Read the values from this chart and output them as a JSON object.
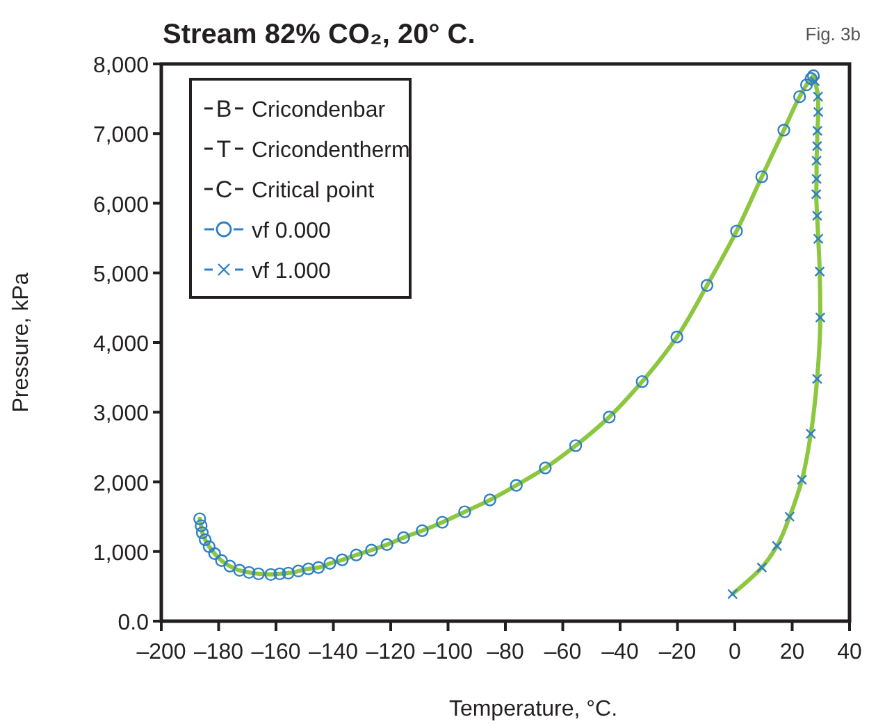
{
  "chart_data": {
    "type": "scatter",
    "title": "Stream 82% CO₂, 20° C.",
    "annotations": [
      "Fig. 3b",
      "B",
      "T",
      "C"
    ],
    "xlabel": "Temperature, °C.",
    "ylabel": "Pressure, kPa",
    "xlim": [
      -200,
      40
    ],
    "xticks": [
      {
        "value": -200,
        "label": "–200"
      },
      {
        "value": -180,
        "label": "–180"
      },
      {
        "value": -160,
        "label": "–160"
      },
      {
        "value": -140,
        "label": "–140"
      },
      {
        "value": -120,
        "label": "–120"
      },
      {
        "value": -100,
        "label": "–100"
      },
      {
        "value": -80,
        "label": "–80"
      },
      {
        "value": -60,
        "label": "–60"
      },
      {
        "value": -40,
        "label": "–40"
      },
      {
        "value": -20,
        "label": "–20"
      },
      0,
      20,
      40
    ],
    "ylim": [
      0,
      8000
    ],
    "yticks": [
      {
        "value": 0,
        "label": "0.0"
      },
      {
        "value": 1000,
        "label": "1,000"
      },
      {
        "value": 2000,
        "label": "2,000"
      },
      {
        "value": 3000,
        "label": "3,000"
      },
      {
        "value": 4000,
        "label": "4,000"
      },
      {
        "value": 5000,
        "label": "5,000"
      },
      {
        "value": 6000,
        "label": "6,000"
      },
      {
        "value": 7000,
        "label": "7,000"
      },
      {
        "value": 8000,
        "label": "8,000"
      }
    ],
    "grid": false,
    "legend": "top left",
    "series": [
      {
        "type": "line",
        "color": "#8dc63f",
        "marker": "none",
        "x": [
          -186.6,
          -186.1,
          -185.7,
          -184.7,
          -183.3,
          -181.4,
          -179.0,
          -176.1,
          -172.7,
          -169.4,
          -166.1,
          -161.8,
          -158.7,
          -155.7,
          -152.2,
          -148.7,
          -145.2,
          -141.2,
          -136.9,
          -132.0,
          -126.7,
          -121.3,
          -115.5,
          -109.0,
          -102.0,
          -94.2,
          -85.4,
          -76.2,
          -66.1,
          -55.5,
          -43.8,
          -32.3,
          -20.2,
          -9.7,
          0.6,
          9.4,
          17.1,
          22.6,
          25.0,
          26.6,
          27.4,
          27.9,
          29.0,
          29.1,
          28.8,
          28.7,
          28.5,
          28.5,
          28.4,
          28.7,
          29.1,
          29.6,
          29.8,
          28.7,
          26.5,
          23.4,
          19.1,
          14.7,
          9.4,
          -0.8
        ],
        "values": [
          1470,
          1370,
          1270,
          1170,
          1070,
          970,
          870,
          790,
          730,
          700,
          680,
          670,
          680,
          690,
          720,
          750,
          770,
          830,
          880,
          950,
          1020,
          1100,
          1200,
          1300,
          1420,
          1570,
          1740,
          1950,
          2200,
          2520,
          2930,
          3440,
          4080,
          4820,
          5600,
          6380,
          7050,
          7530,
          7700,
          7790,
          7830,
          7750,
          7530,
          7310,
          7040,
          6820,
          6610,
          6350,
          6130,
          5820,
          5490,
          5020,
          4360,
          3480,
          2690,
          2030,
          1500,
          1080,
          770,
          390
        ]
      },
      {
        "name": "Cricondenbar",
        "color": "#231f20",
        "marker": "text"
      },
      {
        "name": "Cricondentherm",
        "color": "#231f20",
        "marker": "text"
      },
      {
        "name": "Critical point",
        "color": "#231f20",
        "marker": "text"
      },
      {
        "name": "vf 0.000",
        "color": "#2e7fc6",
        "marker": "circle",
        "x": [
          -186.6,
          -186.1,
          -185.7,
          -184.7,
          -183.3,
          -181.4,
          -179.0,
          -176.1,
          -172.7,
          -169.4,
          -166.1,
          -161.8,
          -158.7,
          -155.7,
          -152.2,
          -148.7,
          -145.2,
          -141.2,
          -136.9,
          -132.0,
          -126.7,
          -121.3,
          -115.5,
          -109.0,
          -102.0,
          -94.2,
          -85.4,
          -76.2,
          -66.1,
          -55.5,
          -43.8,
          -32.3,
          -20.2,
          -9.7,
          0.6,
          9.4,
          17.1,
          22.6,
          25.0,
          26.6,
          27.4
        ],
        "values": [
          1470,
          1370,
          1270,
          1170,
          1070,
          970,
          870,
          790,
          730,
          700,
          680,
          670,
          680,
          690,
          720,
          750,
          770,
          830,
          880,
          950,
          1020,
          1100,
          1200,
          1300,
          1420,
          1570,
          1740,
          1950,
          2200,
          2520,
          2930,
          3440,
          4080,
          4820,
          5600,
          6380,
          7050,
          7530,
          7700,
          7790,
          7830
        ]
      },
      {
        "name": "vf 1.000",
        "color": "#2e7fc6",
        "marker": "cross",
        "x": [
          27.9,
          29.0,
          29.1,
          28.8,
          28.7,
          28.5,
          28.5,
          28.4,
          28.7,
          29.1,
          29.6,
          29.8,
          28.7,
          26.5,
          23.4,
          19.1,
          14.7,
          9.4,
          -0.8
        ],
        "values": [
          7750,
          7530,
          7310,
          7040,
          6820,
          6610,
          6350,
          6130,
          5820,
          5490,
          5020,
          4360,
          3480,
          2690,
          2030,
          1500,
          1080,
          770,
          390
        ]
      }
    ]
  }
}
